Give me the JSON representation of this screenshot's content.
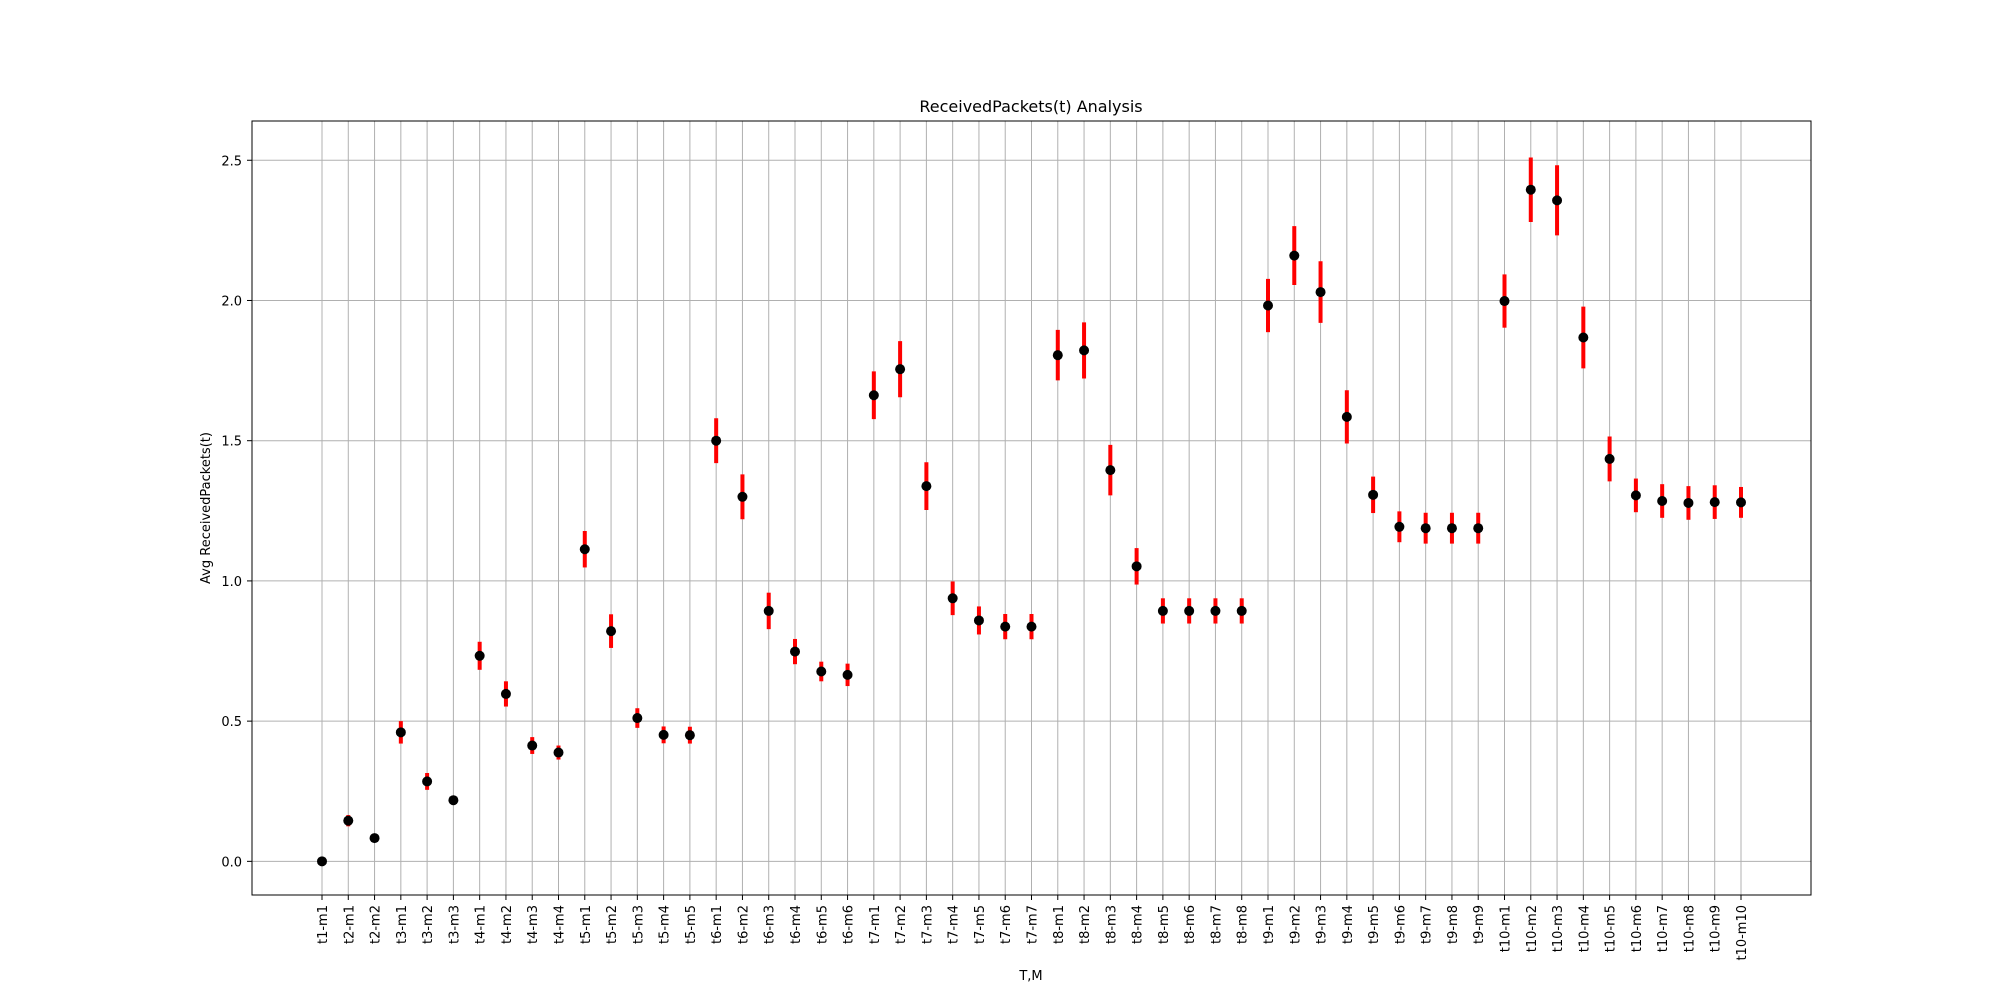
{
  "chart_data": {
    "type": "scatter",
    "title": "ReceivedPackets(t) Analysis",
    "xlabel": "T,M",
    "ylabel": "Avg ReceivedPackets(t)",
    "ylim": [
      -0.12,
      2.64
    ],
    "yticks": [
      "0.0",
      "0.5",
      "1.0",
      "1.5",
      "2.0",
      "2.5"
    ],
    "ytick_values": [
      0.0,
      0.5,
      1.0,
      1.5,
      2.0,
      2.5
    ],
    "grid": true,
    "marker_color": "#000000",
    "errorbar_color": "#ff0000",
    "categories": [
      "t1-m1",
      "t2-m1",
      "t2-m2",
      "t3-m1",
      "t3-m2",
      "t3-m3",
      "t4-m1",
      "t4-m2",
      "t4-m3",
      "t4-m4",
      "t5-m1",
      "t5-m2",
      "t5-m3",
      "t5-m4",
      "t5-m5",
      "t6-m1",
      "t6-m2",
      "t6-m3",
      "t6-m4",
      "t6-m5",
      "t6-m6",
      "t7-m1",
      "t7-m2",
      "t7-m3",
      "t7-m4",
      "t7-m5",
      "t7-m6",
      "t7-m7",
      "t8-m1",
      "t8-m2",
      "t8-m3",
      "t8-m4",
      "t8-m5",
      "t8-m6",
      "t8-m7",
      "t8-m8",
      "t9-m1",
      "t9-m2",
      "t9-m3",
      "t9-m4",
      "t9-m5",
      "t9-m6",
      "t9-m7",
      "t9-m8",
      "t9-m9",
      "t10-m1",
      "t10-m2",
      "t10-m3",
      "t10-m4",
      "t10-m5",
      "t10-m6",
      "t10-m7",
      "t10-m8",
      "t10-m9",
      "t10-m10"
    ],
    "values": [
      0.0,
      0.145,
      0.083,
      0.46,
      0.285,
      0.218,
      0.733,
      0.597,
      0.413,
      0.388,
      1.113,
      0.821,
      0.511,
      0.451,
      0.45,
      1.5,
      1.3,
      0.893,
      0.748,
      0.677,
      0.665,
      1.662,
      1.755,
      1.338,
      0.938,
      0.859,
      0.837,
      0.837,
      1.805,
      1.822,
      1.395,
      1.052,
      0.893,
      0.893,
      0.893,
      0.893,
      1.982,
      2.16,
      2.03,
      1.585,
      1.307,
      1.193,
      1.188,
      1.188,
      1.188,
      1.998,
      2.395,
      2.357,
      1.868,
      1.435,
      1.305,
      1.285,
      1.278,
      1.281,
      1.28
    ],
    "errors": [
      0.0,
      0.02,
      0.01,
      0.04,
      0.03,
      0.0,
      0.05,
      0.045,
      0.03,
      0.025,
      0.065,
      0.06,
      0.035,
      0.03,
      0.03,
      0.08,
      0.08,
      0.065,
      0.045,
      0.035,
      0.04,
      0.085,
      0.1,
      0.085,
      0.06,
      0.05,
      0.045,
      0.045,
      0.09,
      0.1,
      0.09,
      0.065,
      0.045,
      0.045,
      0.045,
      0.045,
      0.095,
      0.105,
      0.11,
      0.095,
      0.065,
      0.055,
      0.055,
      0.055,
      0.055,
      0.095,
      0.115,
      0.125,
      0.11,
      0.08,
      0.06,
      0.06,
      0.06,
      0.06,
      0.055
    ]
  }
}
